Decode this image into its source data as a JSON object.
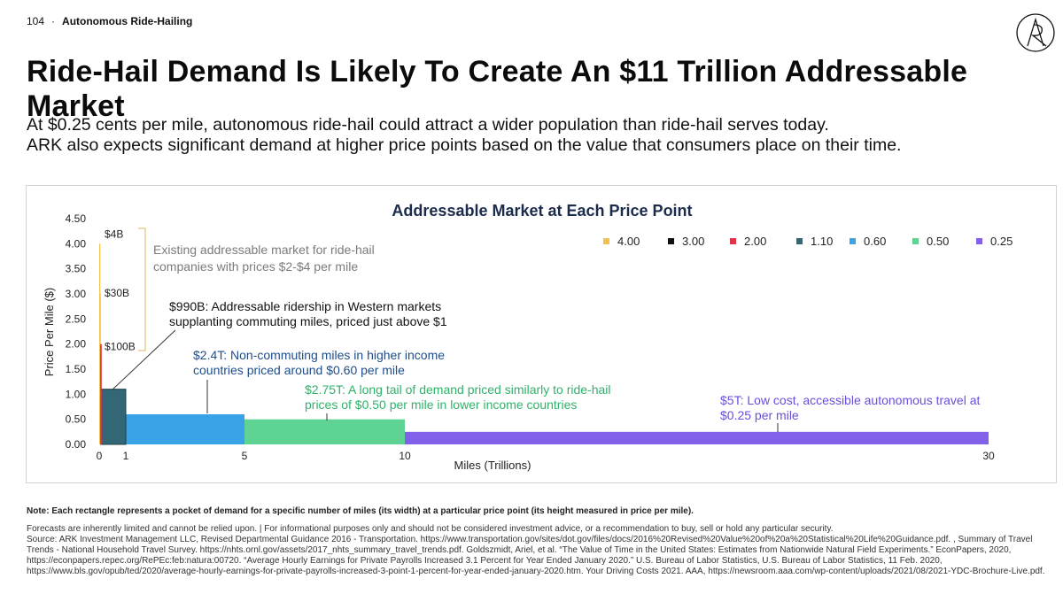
{
  "header": {
    "page_number": "104",
    "separator": "·",
    "section": "Autonomous Ride-Hailing"
  },
  "title": "Ride-Hail Demand Is Likely To Create An $11 Trillion Addressable Market",
  "subtitle": [
    "At $0.25 cents per mile, autonomous ride-hail could attract a wider population than ride-hail serves today.",
    "ARK also expects significant demand at higher price points based on the value that consumers place on their time."
  ],
  "colors": {
    "p400": "#f2c14e",
    "p300": "#111111",
    "p200": "#e0344a",
    "p110": "#336775",
    "p060": "#3aa3e8",
    "p050": "#5fd394",
    "p025": "#8161ea",
    "annotation_blue": "#1e4d8c",
    "annotation_green": "#2fb36a",
    "annotation_purple": "#6b4de0",
    "bracket": "#e8cf8f"
  },
  "chart_data": {
    "type": "bar",
    "title": "Addressable Market at Each Price Point",
    "xlabel": "Miles (Trillions)",
    "ylabel": "Price Per Mile ($)",
    "xlim": [
      0,
      30
    ],
    "ylim": [
      0,
      4.5
    ],
    "x_ticks": [
      "0",
      "1",
      "5",
      "10",
      "30"
    ],
    "x_tick_values": [
      0,
      1,
      5,
      10,
      30
    ],
    "y_ticks": [
      "0.00",
      "0.50",
      "1.00",
      "1.50",
      "2.00",
      "2.50",
      "3.00",
      "3.50",
      "4.00",
      "4.50"
    ],
    "y_tick_values": [
      0,
      0.5,
      1,
      1.5,
      2,
      2.5,
      3,
      3.5,
      4,
      4.5
    ],
    "legend_position": "top-right",
    "series": [
      {
        "name": "4.00",
        "price": 4.0,
        "miles": 0.001,
        "color": "#f2c14e"
      },
      {
        "name": "3.00",
        "price": 3.0,
        "miles": 0.01,
        "color": "#111111"
      },
      {
        "name": "2.00",
        "price": 2.0,
        "miles": 0.05,
        "color": "#e0344a"
      },
      {
        "name": "1.10",
        "price": 1.1,
        "miles": 0.9,
        "color": "#336775"
      },
      {
        "name": "0.60",
        "price": 0.6,
        "miles": 4.0,
        "color": "#3aa3e8"
      },
      {
        "name": "0.50",
        "price": 0.5,
        "miles": 5.5,
        "color": "#5fd394"
      },
      {
        "name": "0.25",
        "price": 0.25,
        "miles": 20.0,
        "color": "#8161ea"
      }
    ],
    "point_labels": [
      "$4B",
      "$30B",
      "$100B"
    ],
    "annotations": {
      "existing_market": [
        "Existing addressable market for ride-hail",
        "companies with prices $2-$4 per mile"
      ],
      "western": [
        "$990B: Addressable ridership in Western markets",
        "supplanting commuting miles, priced just above $1"
      ],
      "non_commuting": [
        "$2.4T: Non-commuting miles in higher income",
        "countries priced around $0.60 per mile"
      ],
      "long_tail": [
        "$2.75T:  A long tail of demand priced similarly to ride-hail",
        "prices of $0.50 per mile in lower income countries"
      ],
      "low_cost": [
        "$5T: Low cost, accessible autonomous travel at",
        "$0.25 per mile"
      ]
    }
  },
  "note": "Note: Each rectangle represents a pocket of demand for a specific number of miles (its width) at a particular price point (its height measured in price per mile).",
  "footer": {
    "disclaimer": "Forecasts are inherently limited and cannot be relied upon. | For informational purposes only and should not be considered investment advice, or a recommendation to buy, sell or hold any particular security.",
    "source": "Source: ARK Investment Management LLC, Revised Departmental Guidance 2016 - Transportation. https://www.transportation.gov/sites/dot.gov/files/docs/2016%20Revised%20Value%20of%20a%20Statistical%20Life%20Guidance.pdf. , Summary of Travel Trends - National Household Travel Survey. https://nhts.ornl.gov/assets/2017_nhts_summary_travel_trends.pdf. Goldszmidt, Ariel, et al. “The Value of Time in the United States: Estimates from Nationwide Natural Field Experiments.” EconPapers, 2020, https://econpapers.repec.org/RePEc:feb:natura:00720. “Average Hourly Earnings for Private Payrolls Increased 3.1 Percent for Year Ended January 2020.” U.S. Bureau of Labor Statistics, U.S. Bureau of Labor Statistics, 11 Feb. 2020, https://www.bls.gov/opub/ted/2020/average-hourly-earnings-for-private-payrolls-increased-3-point-1-percent-for-year-ended-january-2020.htm. Your Driving Costs 2021. AAA, https://newsroom.aaa.com/wp-content/uploads/2021/08/2021-YDC-Brochure-Live.pdf."
  }
}
